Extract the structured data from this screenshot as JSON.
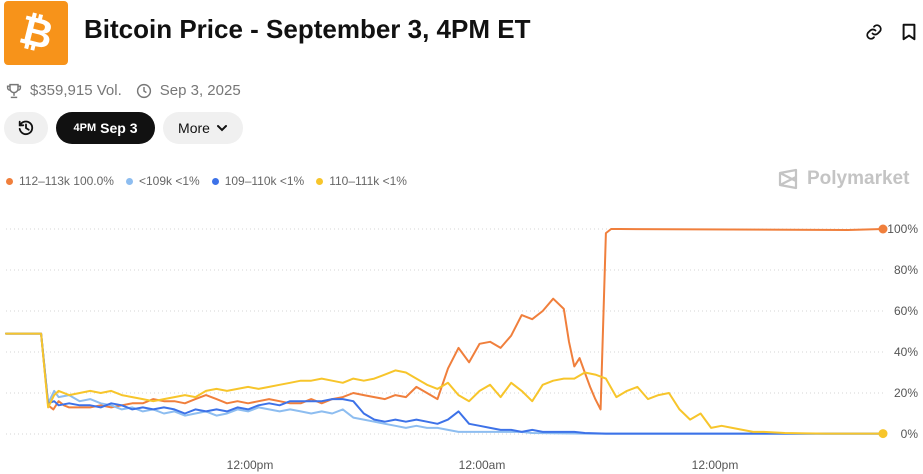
{
  "header": {
    "logo_icon": "bitcoin-logo-icon",
    "logo_glyph": "₿",
    "title": "Bitcoin Price - September 3, 4PM ET",
    "link_icon": "link-icon",
    "bookmark_icon": "bookmark-icon"
  },
  "meta": {
    "volume": "$359,915 Vol.",
    "date": "Sep 3, 2025",
    "trophy_icon": "trophy-icon",
    "clock_icon": "clock-icon"
  },
  "controls": {
    "history_icon": "history-icon",
    "active_time": "4PM",
    "active_date": "Sep 3",
    "more_label": "More",
    "more_icon": "chevron-down-icon"
  },
  "brand": {
    "name": "Polymarket",
    "icon": "polymarket-logo-icon"
  },
  "chart_data": {
    "type": "line",
    "x_ticks": [
      "12:00pm",
      "12:00am",
      "12:00pm"
    ],
    "y_ticks": [
      "100%",
      "80%",
      "60%",
      "40%",
      "20%",
      "0%"
    ],
    "ylim": [
      0,
      100
    ],
    "grid": true,
    "legend_position": "top-left",
    "series": [
      {
        "name": "112–113k",
        "value_label": "100.0%",
        "color": "#f07f3c",
        "points": [
          [
            0,
            49
          ],
          [
            4,
            49
          ],
          [
            4.8,
            14
          ],
          [
            5.4,
            12
          ],
          [
            6,
            16
          ],
          [
            6.6,
            14
          ],
          [
            7.2,
            13
          ],
          [
            8.4,
            13
          ],
          [
            9.6,
            13
          ],
          [
            10.8,
            14
          ],
          [
            12,
            13
          ],
          [
            13.2,
            14
          ],
          [
            14.4,
            15
          ],
          [
            15.6,
            15
          ],
          [
            16.8,
            17
          ],
          [
            18,
            16
          ],
          [
            19.2,
            16
          ],
          [
            20.4,
            15
          ],
          [
            21.6,
            17
          ],
          [
            22.8,
            19
          ],
          [
            24,
            17
          ],
          [
            25.2,
            15
          ],
          [
            26.4,
            16
          ],
          [
            27.6,
            15
          ],
          [
            28.8,
            16
          ],
          [
            30,
            17
          ],
          [
            31.2,
            16
          ],
          [
            32.4,
            15
          ],
          [
            33.6,
            15
          ],
          [
            34.8,
            17
          ],
          [
            36,
            15
          ],
          [
            37.2,
            17
          ],
          [
            38.4,
            18
          ],
          [
            39.6,
            20
          ],
          [
            40.8,
            19
          ],
          [
            42,
            18
          ],
          [
            43.2,
            17
          ],
          [
            44.4,
            19
          ],
          [
            45.6,
            18
          ],
          [
            46.8,
            23
          ],
          [
            48,
            20
          ],
          [
            49.2,
            17
          ],
          [
            50.4,
            32
          ],
          [
            51.6,
            42
          ],
          [
            52.8,
            35
          ],
          [
            54,
            44
          ],
          [
            55.2,
            45
          ],
          [
            56.4,
            42
          ],
          [
            57.6,
            48
          ],
          [
            58.8,
            58
          ],
          [
            60,
            56
          ],
          [
            61.2,
            60
          ],
          [
            62.4,
            66
          ],
          [
            63.6,
            61
          ],
          [
            64.2,
            45
          ],
          [
            64.8,
            33
          ],
          [
            65.4,
            37
          ],
          [
            66,
            30
          ],
          [
            66.6,
            23
          ],
          [
            67.2,
            17
          ],
          [
            67.8,
            12
          ],
          [
            68.4,
            98
          ],
          [
            69,
            100
          ],
          [
            70,
            100
          ],
          [
            96,
            99.5
          ],
          [
            100,
            100
          ]
        ]
      },
      {
        "name": "<109k",
        "value_label": "<1%",
        "color": "#8dbdf0",
        "points": [
          [
            0,
            49
          ],
          [
            4,
            49
          ],
          [
            4.8,
            15
          ],
          [
            5.5,
            21
          ],
          [
            6,
            18
          ],
          [
            7.2,
            19
          ],
          [
            8.4,
            16
          ],
          [
            9.6,
            17
          ],
          [
            10.8,
            15
          ],
          [
            12,
            14
          ],
          [
            13.2,
            12
          ],
          [
            14.4,
            13
          ],
          [
            15.6,
            11
          ],
          [
            16.8,
            12
          ],
          [
            18,
            10
          ],
          [
            19.2,
            11
          ],
          [
            20.4,
            9
          ],
          [
            21.6,
            10
          ],
          [
            22.8,
            11
          ],
          [
            24,
            9
          ],
          [
            25.2,
            10
          ],
          [
            26.4,
            12
          ],
          [
            27.6,
            11
          ],
          [
            28.8,
            13
          ],
          [
            30,
            12
          ],
          [
            31.2,
            11
          ],
          [
            32.4,
            12
          ],
          [
            33.6,
            11
          ],
          [
            34.8,
            10
          ],
          [
            36,
            11
          ],
          [
            37.2,
            10
          ],
          [
            38.4,
            12
          ],
          [
            39.6,
            8
          ],
          [
            40.8,
            7
          ],
          [
            42,
            6
          ],
          [
            43.2,
            5
          ],
          [
            44.4,
            4
          ],
          [
            45.6,
            3
          ],
          [
            46.8,
            4
          ],
          [
            48,
            3
          ],
          [
            49.2,
            3
          ],
          [
            50.4,
            2
          ],
          [
            51.6,
            1
          ],
          [
            54,
            1
          ],
          [
            58.8,
            1
          ],
          [
            60,
            0.5
          ],
          [
            63.6,
            0.3
          ],
          [
            66,
            0.2
          ],
          [
            68.4,
            0.1
          ],
          [
            100,
            0.1
          ]
        ]
      },
      {
        "name": "109–110k",
        "value_label": "<1%",
        "color": "#3d72e8",
        "points": [
          [
            0,
            49
          ],
          [
            4,
            49
          ],
          [
            4.8,
            15
          ],
          [
            5.5,
            16
          ],
          [
            6,
            14
          ],
          [
            7.2,
            15
          ],
          [
            8.4,
            14
          ],
          [
            9.6,
            14
          ],
          [
            10.8,
            13
          ],
          [
            12,
            15
          ],
          [
            13.2,
            14
          ],
          [
            14.4,
            12
          ],
          [
            15.6,
            13
          ],
          [
            16.8,
            12
          ],
          [
            18,
            13
          ],
          [
            19.2,
            12
          ],
          [
            20.4,
            10
          ],
          [
            21.6,
            12
          ],
          [
            22.8,
            11
          ],
          [
            24,
            12
          ],
          [
            25.2,
            11
          ],
          [
            26.4,
            13
          ],
          [
            27.6,
            12
          ],
          [
            28.8,
            14
          ],
          [
            30,
            15
          ],
          [
            31.2,
            14
          ],
          [
            32.4,
            16
          ],
          [
            33.6,
            16
          ],
          [
            34.8,
            16
          ],
          [
            36,
            16
          ],
          [
            37.2,
            17
          ],
          [
            38.4,
            17
          ],
          [
            39.6,
            16
          ],
          [
            40.8,
            10
          ],
          [
            42,
            7
          ],
          [
            43.2,
            6
          ],
          [
            44.4,
            7
          ],
          [
            45.6,
            6
          ],
          [
            46.8,
            7
          ],
          [
            48,
            6
          ],
          [
            49.2,
            5
          ],
          [
            50.4,
            7
          ],
          [
            51.6,
            11
          ],
          [
            52.8,
            5
          ],
          [
            54,
            4
          ],
          [
            55.2,
            3
          ],
          [
            56.4,
            2
          ],
          [
            57.6,
            2
          ],
          [
            58.8,
            1
          ],
          [
            60,
            2
          ],
          [
            61.2,
            1
          ],
          [
            63.6,
            1
          ],
          [
            64.8,
            1
          ],
          [
            66,
            0.5
          ],
          [
            68.4,
            0.2
          ],
          [
            100,
            0.2
          ]
        ]
      },
      {
        "name": "110–111k",
        "value_label": "<1%",
        "color": "#f7c52b",
        "points": [
          [
            0,
            49
          ],
          [
            4,
            49
          ],
          [
            4.8,
            13
          ],
          [
            5.5,
            19
          ],
          [
            6,
            21
          ],
          [
            7.2,
            19
          ],
          [
            8.4,
            20
          ],
          [
            9.6,
            21
          ],
          [
            10.8,
            20
          ],
          [
            12,
            21
          ],
          [
            13.2,
            19
          ],
          [
            14.4,
            18
          ],
          [
            15.6,
            17
          ],
          [
            16.8,
            16
          ],
          [
            18,
            17
          ],
          [
            19.2,
            18
          ],
          [
            20.4,
            19
          ],
          [
            21.6,
            18
          ],
          [
            22.8,
            21
          ],
          [
            24,
            22
          ],
          [
            25.2,
            21
          ],
          [
            26.4,
            22
          ],
          [
            27.6,
            23
          ],
          [
            28.8,
            22
          ],
          [
            30,
            23
          ],
          [
            31.2,
            24
          ],
          [
            32.4,
            25
          ],
          [
            33.6,
            26
          ],
          [
            34.8,
            26
          ],
          [
            36,
            27
          ],
          [
            37.2,
            26
          ],
          [
            38.4,
            25
          ],
          [
            39.6,
            27
          ],
          [
            40.8,
            26
          ],
          [
            42,
            27
          ],
          [
            43.2,
            29
          ],
          [
            44.4,
            31
          ],
          [
            45.6,
            30
          ],
          [
            46.8,
            27
          ],
          [
            48,
            24
          ],
          [
            49.2,
            22
          ],
          [
            50.4,
            25
          ],
          [
            51.6,
            19
          ],
          [
            52.8,
            16
          ],
          [
            54,
            21
          ],
          [
            55.2,
            24
          ],
          [
            56.4,
            18
          ],
          [
            57.6,
            25
          ],
          [
            58.8,
            21
          ],
          [
            60,
            16
          ],
          [
            61.2,
            24
          ],
          [
            62.4,
            26
          ],
          [
            63.6,
            27
          ],
          [
            64.8,
            27
          ],
          [
            66,
            30
          ],
          [
            67.2,
            29
          ],
          [
            68.4,
            27
          ],
          [
            69.6,
            18
          ],
          [
            70.8,
            21
          ],
          [
            72,
            23
          ],
          [
            73.2,
            17
          ],
          [
            74.4,
            19
          ],
          [
            75.6,
            20
          ],
          [
            76.8,
            12
          ],
          [
            78,
            7
          ],
          [
            79.2,
            10
          ],
          [
            80.4,
            3
          ],
          [
            81.6,
            4
          ],
          [
            82.8,
            3
          ],
          [
            84,
            2
          ],
          [
            85.2,
            1
          ],
          [
            86.4,
            1
          ],
          [
            88.8,
            0.5
          ],
          [
            91.2,
            0.3
          ],
          [
            93.6,
            0.2
          ],
          [
            96,
            0.2
          ],
          [
            100,
            0.2
          ]
        ]
      }
    ]
  }
}
